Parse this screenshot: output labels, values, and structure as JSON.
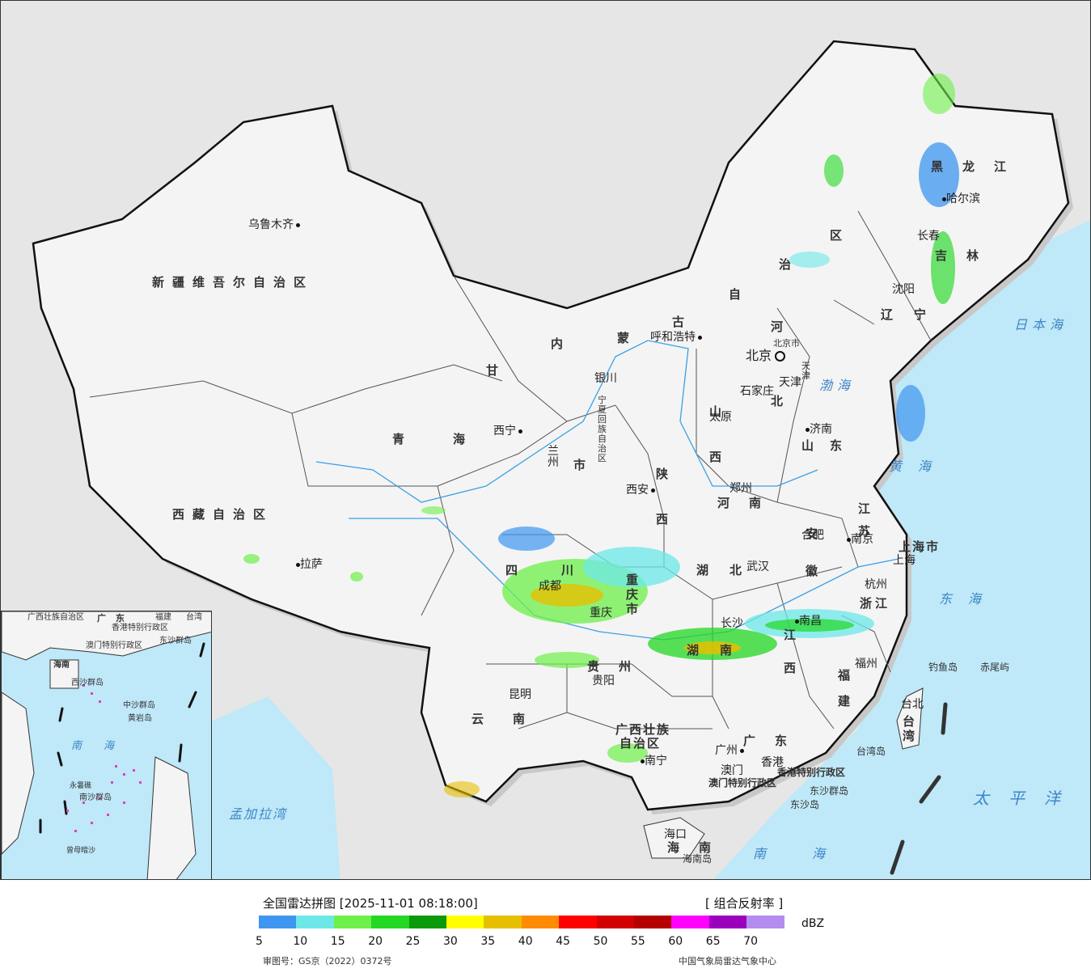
{
  "legend": {
    "title": "全国雷达拼图 [2025-11-01 08:18:00]",
    "product": "[ 组合反射率 ]",
    "unit": "dBZ",
    "colors": [
      "#3e96f0",
      "#6ce8e8",
      "#6ef04a",
      "#22d822",
      "#0a9a0a",
      "#ffff00",
      "#e6c000",
      "#ff8c00",
      "#ff0000",
      "#d20000",
      "#b40000",
      "#ff00ff",
      "#9c00bc",
      "#b48cf0"
    ],
    "ticks": [
      "5",
      "10",
      "15",
      "20",
      "25",
      "30",
      "35",
      "40",
      "45",
      "50",
      "55",
      "60",
      "65",
      "70"
    ],
    "approval": "审图号：GS京（2022）0372号",
    "source": "中国气象局雷达气象中心"
  },
  "provinces": {
    "xinjiang": "新疆维吾尔自治区",
    "xizang": "西藏自治区",
    "qinghai": "青海",
    "gansu": "甘",
    "neimenggu_1": "内",
    "neimenggu_2": "蒙",
    "neimenggu_3": "古",
    "neimenggu_4": "自",
    "neimenggu_5": "治",
    "neimenggu_6": "区",
    "heilongjiang": "黑龙江",
    "jilin": "吉林",
    "liaoning": "辽宁",
    "hebei_1": "河",
    "hebei_2": "北",
    "shanxi": "山西",
    "shaanxi": "陕西",
    "shandong": "山东",
    "henan": "河南",
    "jiangsu": "江苏",
    "anhui": "安徽",
    "sichuan": "四川",
    "chongqing": "重庆市",
    "hubei": "湖北",
    "hunan": "湖南",
    "jiangxi_1": "江",
    "jiangxi_2": "西",
    "zhejiang": "浙江",
    "fujian": "福建",
    "guizhou": "贵州",
    "yunnan": "云南",
    "guangxi_1": "广西壮族",
    "guangxi_2": "自治区",
    "guangdong": "广东",
    "hainan": "海南",
    "taiwan": "台湾",
    "shanghai": "上海市",
    "ningxia": "宁夏回族自治区",
    "gansu_shi": "市",
    "beijing_shi": "北京市",
    "tianjin_shi": "天津"
  },
  "cities": {
    "urumqi": "乌鲁木齐",
    "lhasa": "拉萨",
    "xining": "西宁",
    "lanzhou": "兰州",
    "yinchuan": "银川",
    "hohhot": "呼和浩特",
    "beijing": "北京",
    "tianjin": "天津",
    "shijiazhuang": "石家庄",
    "taiyuan": "太原",
    "jinan": "济南",
    "zhengzhou": "郑州",
    "xian": "西安",
    "harbin": "哈尔滨",
    "changchun": "长春",
    "shenyang": "沈阳",
    "hefei": "合肥",
    "nanjing": "南京",
    "shanghai": "上海",
    "hangzhou": "杭州",
    "wuhan": "武汉",
    "chengdu": "成都",
    "chongqing": "重庆",
    "changsha": "长沙",
    "nanchang": "南昌",
    "fuzhou": "福州",
    "guiyang": "贵阳",
    "kunming": "昆明",
    "nanning": "南宁",
    "guangzhou": "广州",
    "macau": "澳门",
    "hongkong": "香港",
    "haikou": "海口",
    "taibei": "台北"
  },
  "seas": {
    "japan_sea": "日本海",
    "bohai": "渤海",
    "yellow_sea": "黄海",
    "east_sea": "东海",
    "pacific": "太平洋",
    "south_sea_1": "南",
    "south_sea_2": "海",
    "bengal": "孟加拉湾"
  },
  "islands": {
    "diaoyu": "钓鱼岛",
    "chiwei": "赤尾屿",
    "taiwan_dao": "台湾岛",
    "hainan_dao": "海南岛",
    "dongsha_qundao": "东沙群岛",
    "dongsha_dao": "东沙岛",
    "hk_sar": "香港特别行政区",
    "macau_sar": "澳门特别行政区"
  },
  "inset": {
    "guangxi": "广西壮族自治区",
    "guangdong": "广东",
    "fujian": "福建",
    "taiwan": "台湾",
    "hk_sar": "香港特别行政区",
    "macau_sar": "澳门特别行政区",
    "dongsha": "东沙群岛",
    "hainan": "海南",
    "xisha": "西沙群岛",
    "zhongsha": "中沙群岛",
    "huangyan": "黄岩岛",
    "south_sea_1": "南",
    "south_sea_2": "海",
    "nansha": "南沙群岛",
    "yongshu": "永暑礁",
    "zengmu": "曾母暗沙"
  }
}
